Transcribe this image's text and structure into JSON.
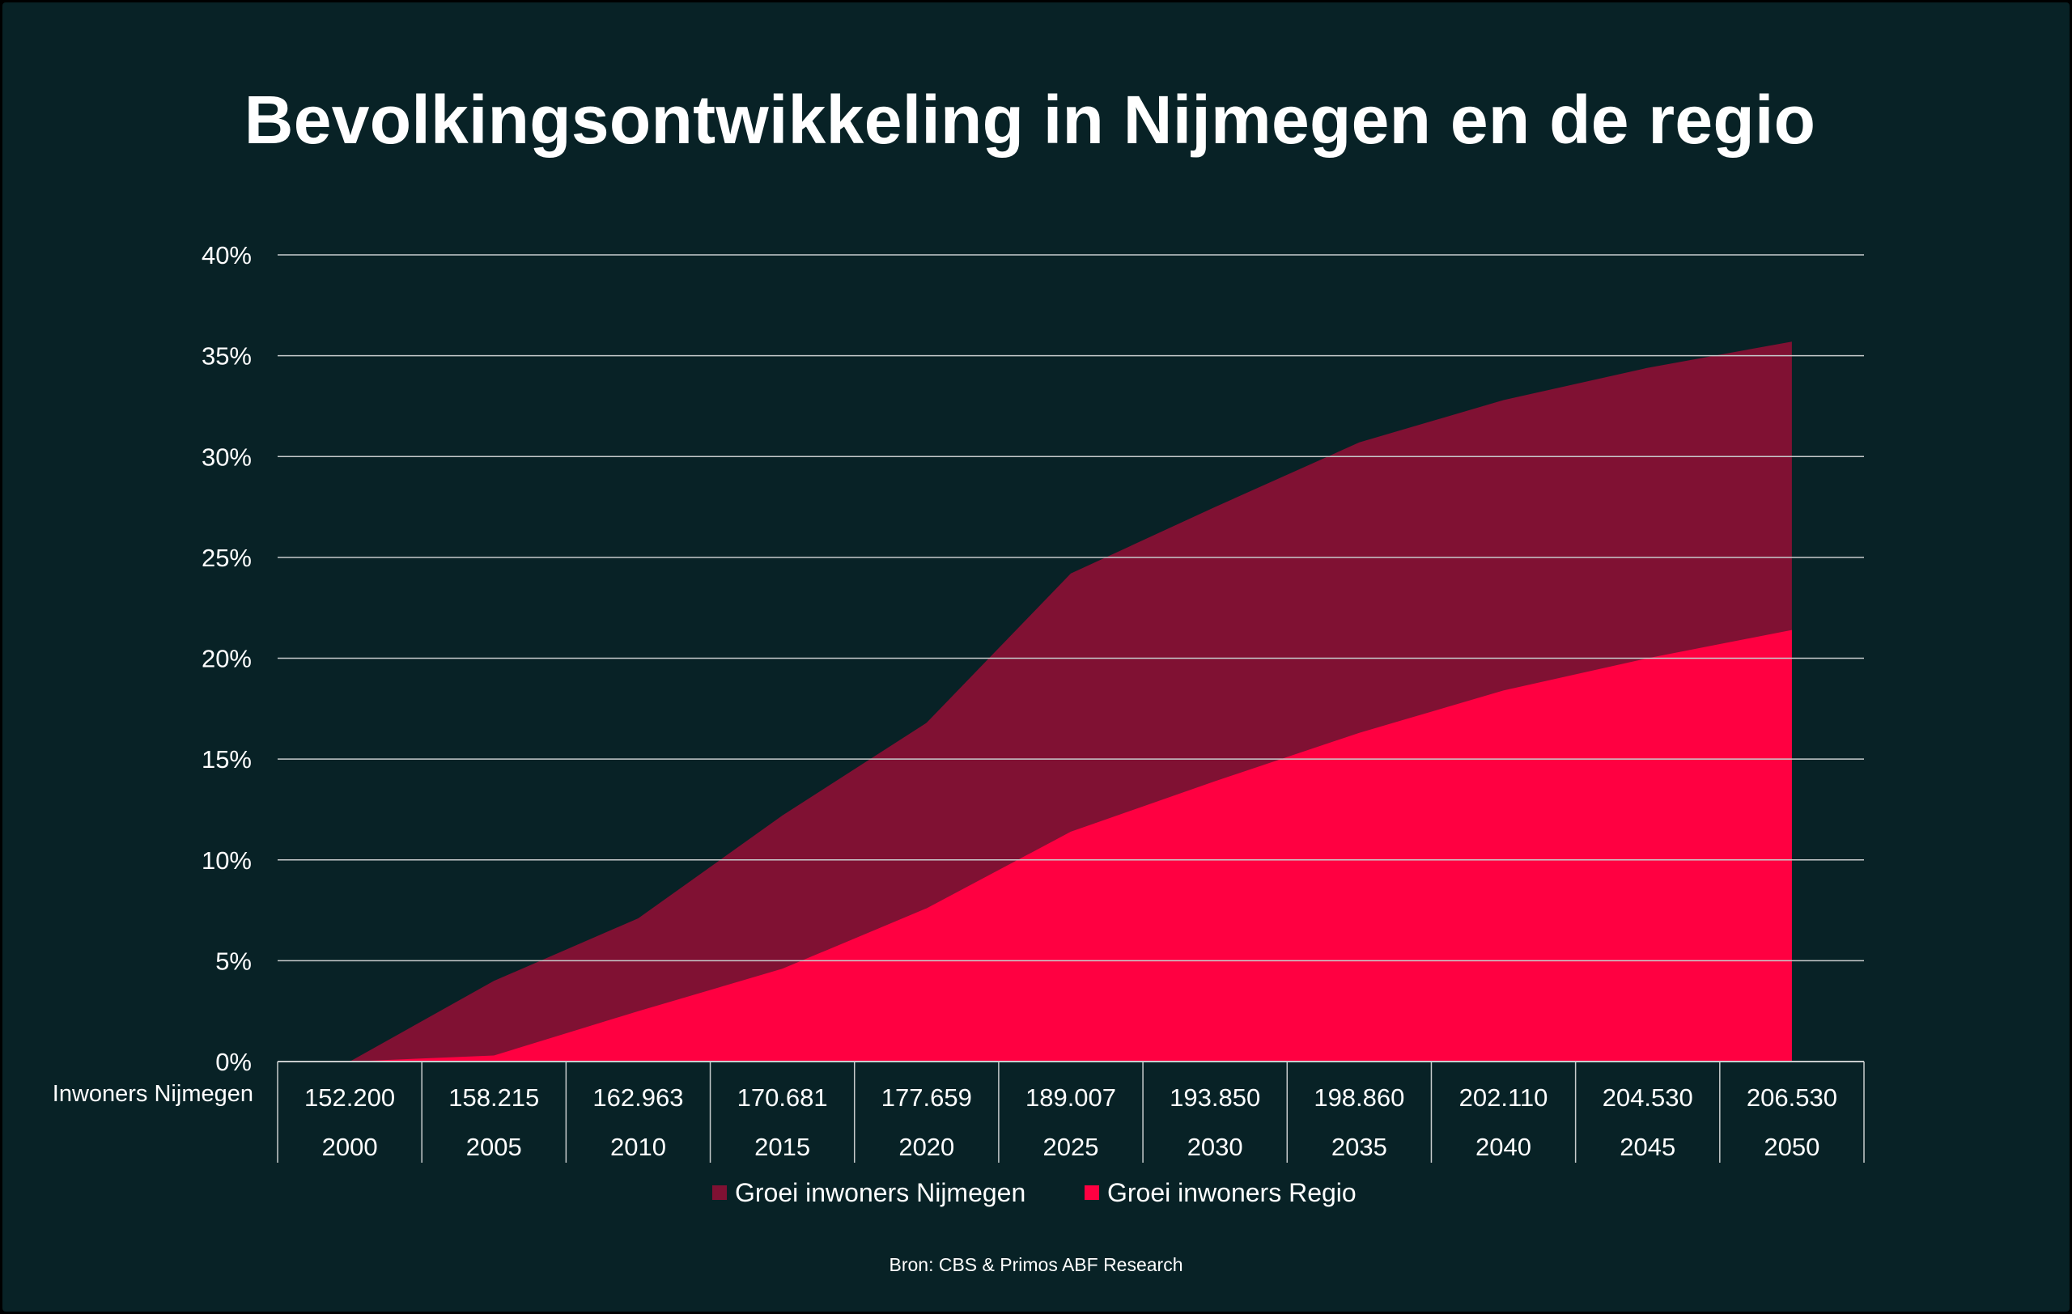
{
  "colors": {
    "background": "#082226",
    "nijmegen": "#801133",
    "regio": "#ff0041",
    "grid": "#c8cccd",
    "text": "#ffffff"
  },
  "source_note": "Bron: CBS & Primos ABF Research",
  "chart_data": {
    "type": "area",
    "title": "Bevolkingsontwikkeling in Nijmegen en de regio",
    "x": [
      "2000",
      "2005",
      "2010",
      "2015",
      "2020",
      "2025",
      "2030",
      "2035",
      "2040",
      "2045",
      "2050"
    ],
    "table_row_label": "Inwoners Nijmegen",
    "table_values": [
      "152.200",
      "158.215",
      "162.963",
      "170.681",
      "177.659",
      "189.007",
      "193.850",
      "198.860",
      "202.110",
      "204.530",
      "206.530"
    ],
    "series": [
      {
        "name": "Groei inwoners Nijmegen",
        "color": "#801133",
        "values": [
          0,
          4.0,
          7.1,
          12.2,
          16.8,
          24.2,
          27.5,
          30.7,
          32.8,
          34.4,
          35.7
        ]
      },
      {
        "name": "Groei inwoners Regio",
        "color": "#ff0041",
        "values": [
          0,
          0.3,
          2.5,
          4.6,
          7.6,
          11.4,
          13.9,
          16.3,
          18.4,
          20.0,
          21.4
        ]
      }
    ],
    "yticks": [
      "0%",
      "5%",
      "10%",
      "15%",
      "20%",
      "25%",
      "30%",
      "35%",
      "40%"
    ],
    "ylim": [
      0,
      40
    ],
    "grid": true,
    "legend_position": "bottom"
  }
}
